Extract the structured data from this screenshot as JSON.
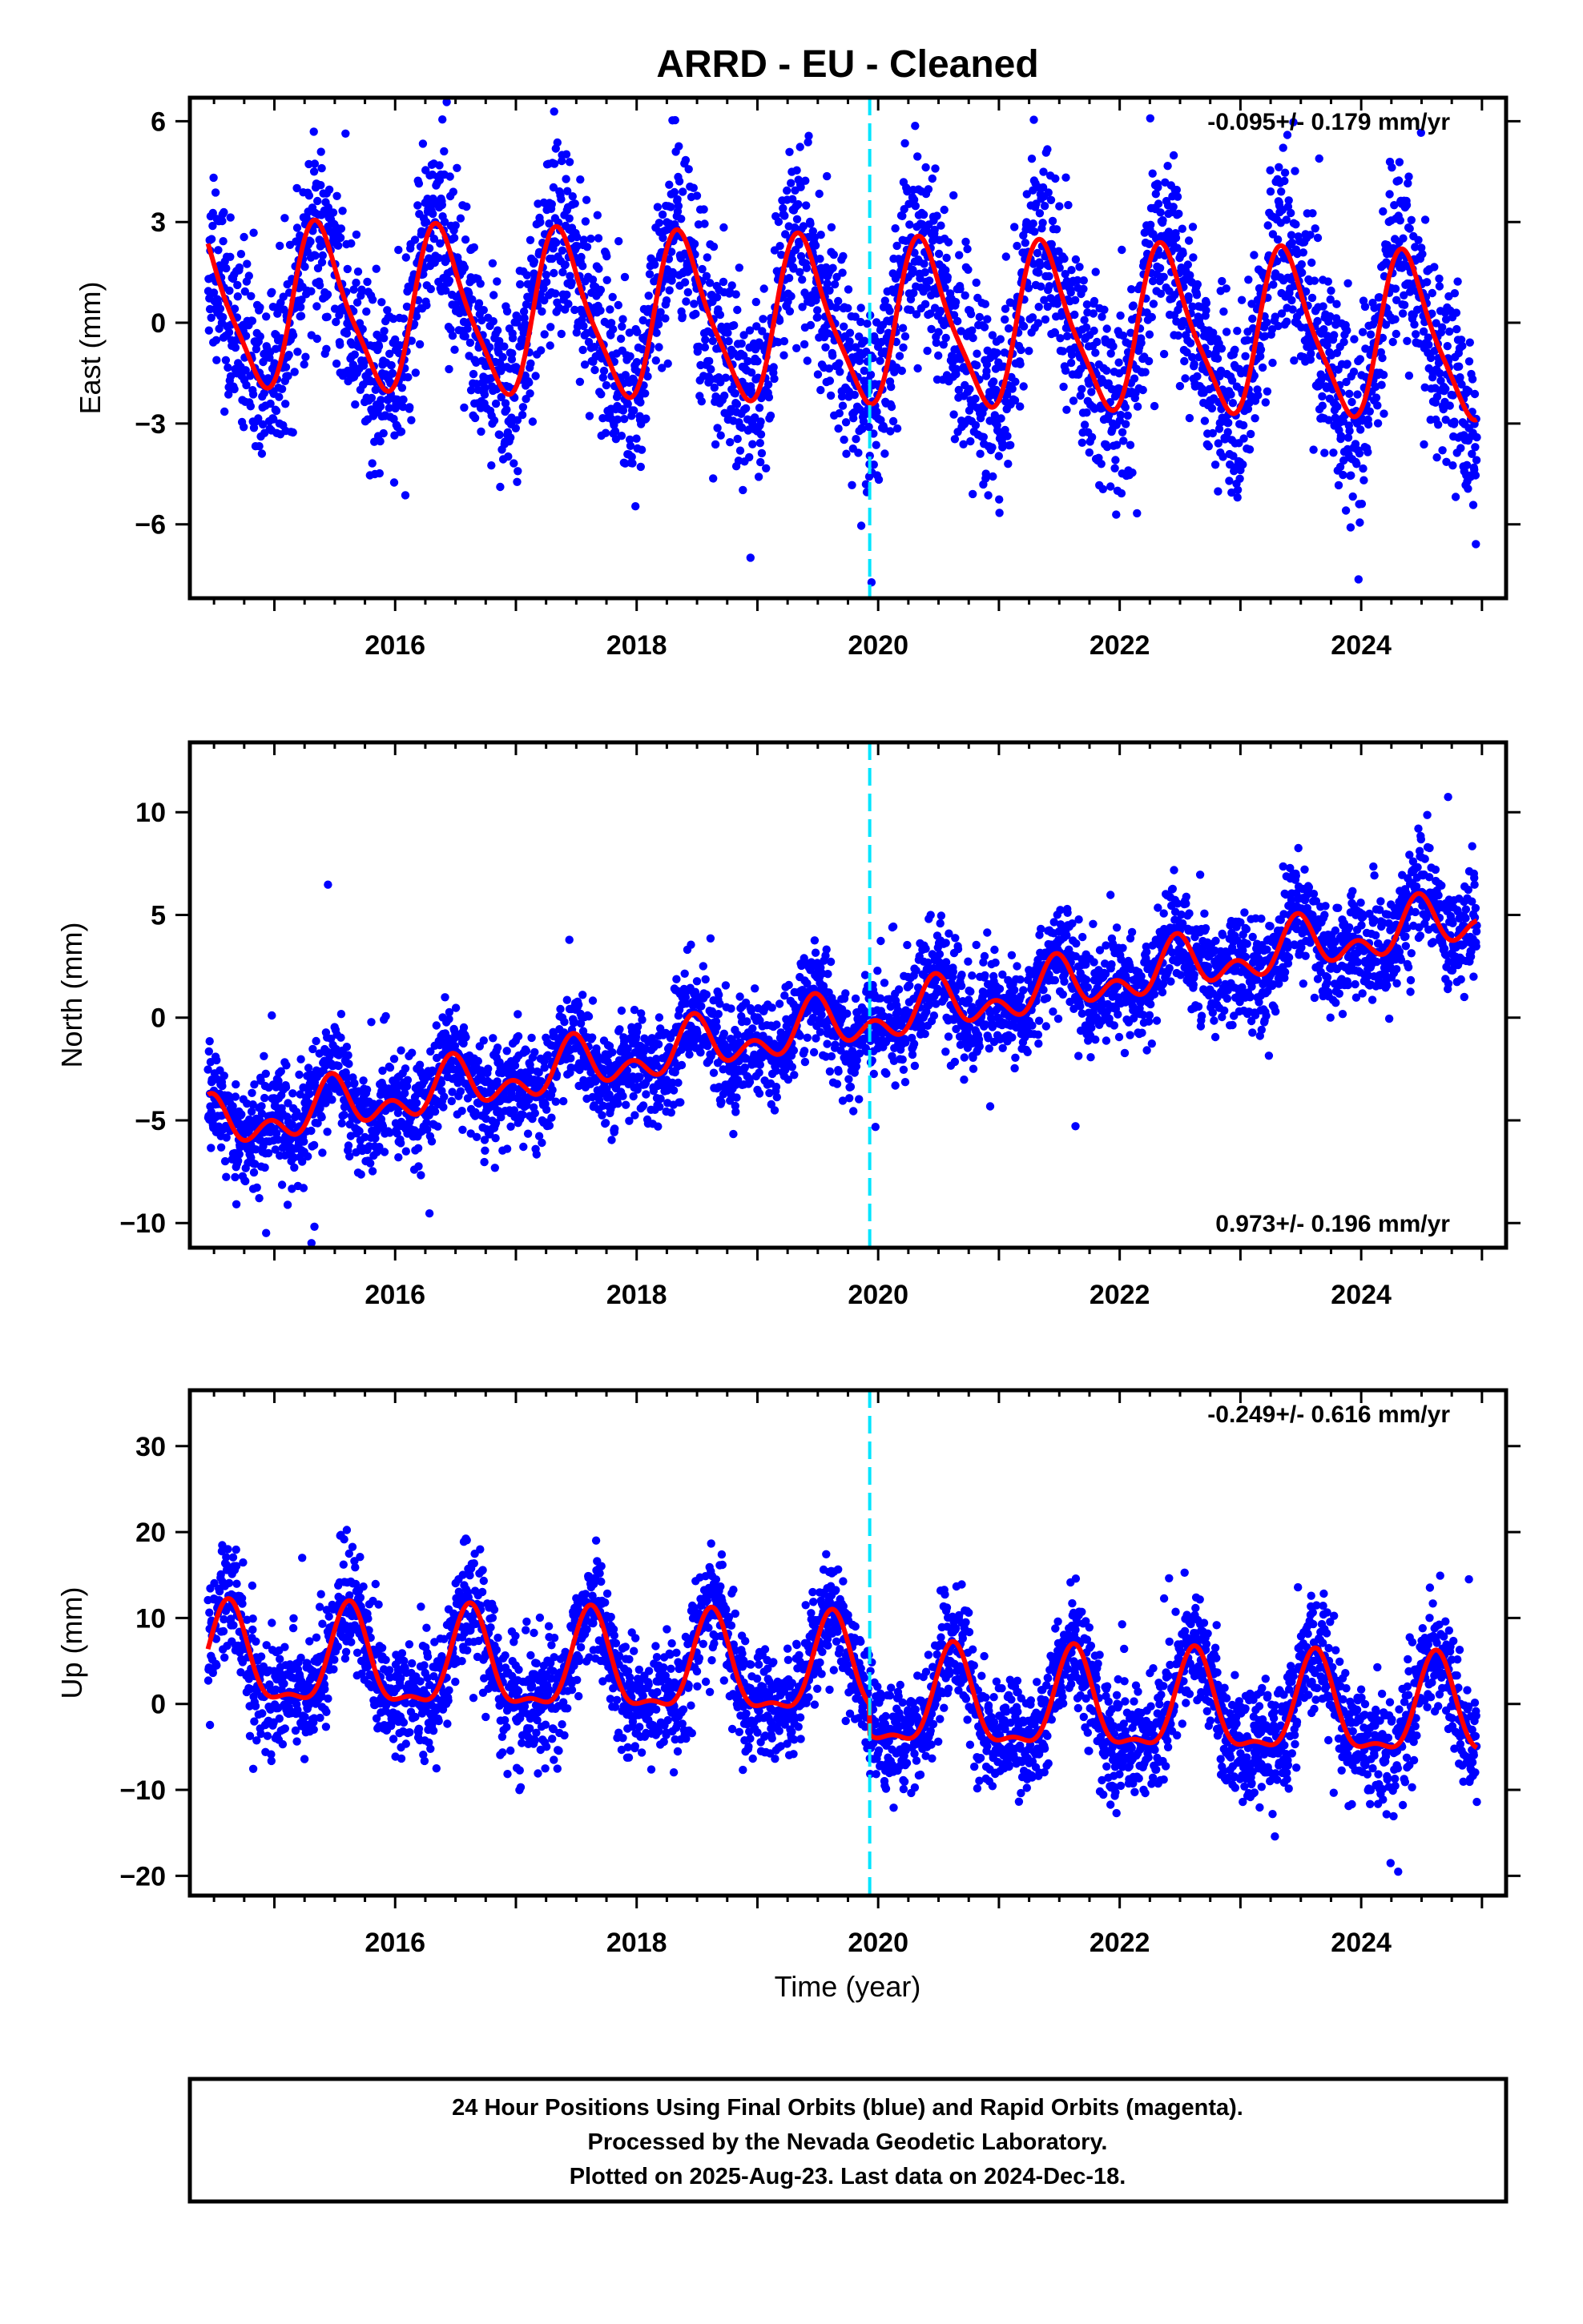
{
  "figure": {
    "title": "ARRD  - EU - Cleaned",
    "xlabel": "Time (year)",
    "caption": [
      "24 Hour Positions Using Final Orbits (blue) and Rapid Orbits (magenta).",
      "Processed by the Nevada Geodetic Laboratory.",
      "Plotted on 2025-Aug-23. Last data on 2024-Dec-18."
    ]
  },
  "colors": {
    "points": "#0000ff",
    "fit": "#ff0000",
    "event_line": "#00e5ff",
    "frame": "#000000"
  },
  "chart_data": [
    {
      "type": "scatter",
      "component": "East",
      "ylabel": "East (mm)",
      "rate_label": "-0.095+/- 0.179 mm/yr",
      "rate_position": "top-right",
      "xlim": [
        2014.3,
        2025.2
      ],
      "ylim": [
        -8.2,
        6.7
      ],
      "xticks": [
        2016,
        2018,
        2020,
        2022,
        2024
      ],
      "yticks": [
        -6,
        -3,
        0,
        3,
        6
      ],
      "event_line_x": 2019.93,
      "fit": {
        "offset": 0.0,
        "trend_mm_per_yr": -0.095,
        "annual_amp": 2.35,
        "annual_peak": 0.38,
        "semiannual_amp": 0.5,
        "semiannual_peak": 0.28,
        "scatter_sd": 1.45
      },
      "x_range": [
        2014.45,
        2024.96
      ]
    },
    {
      "type": "scatter",
      "component": "North",
      "ylabel": "North (mm)",
      "rate_label": "0.973+/- 0.196 mm/yr",
      "rate_position": "bottom-right",
      "xlim": [
        2014.3,
        2025.2
      ],
      "ylim": [
        -11.2,
        13.4
      ],
      "xticks": [
        2016,
        2018,
        2020,
        2022,
        2024
      ],
      "yticks": [
        -10,
        -5,
        0,
        5,
        10
      ],
      "event_line_x": 2019.93,
      "fit": {
        "offset": -0.3,
        "trend_mm_per_yr": 0.973,
        "annual_amp": 0.9,
        "annual_peak": 0.48,
        "semiannual_amp": 0.8,
        "semiannual_peak": 0.47,
        "scatter_sd": 1.3
      },
      "x_range": [
        2014.45,
        2024.96
      ]
    },
    {
      "type": "scatter",
      "component": "Up",
      "ylabel": "Up (mm)",
      "rate_label": "-0.249+/- 0.616 mm/yr",
      "rate_position": "top-right",
      "xlim": [
        2014.3,
        2025.2
      ],
      "ylim": [
        -22.3,
        36.5
      ],
      "xticks": [
        2016,
        2018,
        2020,
        2022,
        2024
      ],
      "yticks": [
        -20,
        -10,
        0,
        10,
        20,
        30
      ],
      "event_line_x": 2019.93,
      "offset_at_event": -3.5,
      "fit": {
        "offset": 3.5,
        "trend_mm_per_yr": -0.249,
        "annual_amp": 5.5,
        "annual_peak": 0.62,
        "semiannual_amp": 2.0,
        "semiannual_peak": 0.12,
        "scatter_sd": 3.3
      },
      "x_range": [
        2014.45,
        2024.96
      ]
    }
  ]
}
